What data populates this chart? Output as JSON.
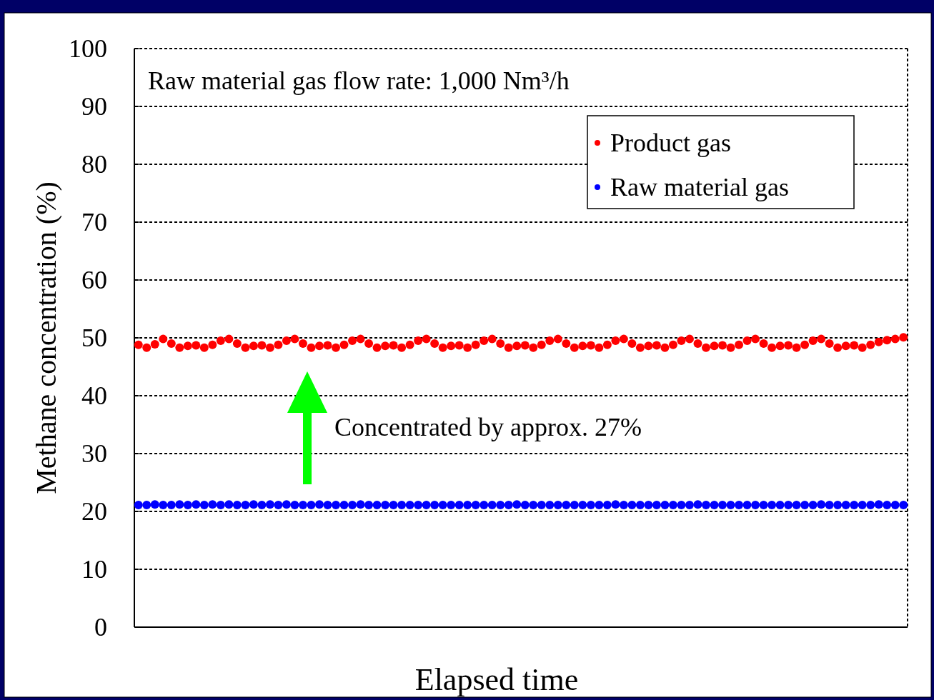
{
  "chart_data": {
    "type": "scatter",
    "xlabel": "Elapsed time",
    "ylabel": "Methane concentration (%)",
    "categories": [
      null,
      null,
      null,
      null,
      null,
      null,
      null,
      null,
      null,
      null,
      null,
      null,
      null,
      null,
      null,
      null,
      null,
      null,
      null,
      null,
      null,
      null,
      null,
      null,
      null,
      null,
      null,
      null,
      null,
      null,
      null,
      null,
      null,
      null,
      null,
      null,
      null,
      null,
      null,
      null,
      null,
      null,
      null,
      null,
      null,
      null,
      null,
      null,
      null,
      null,
      null,
      null,
      null,
      null,
      null,
      null,
      null,
      null,
      null,
      null,
      null,
      null,
      null,
      null,
      null,
      null,
      null,
      null,
      null,
      null,
      null,
      null,
      null,
      null,
      null,
      null,
      null,
      null,
      null,
      null,
      null,
      null,
      null,
      null,
      null,
      null,
      null,
      null,
      null,
      null,
      null,
      null,
      null,
      null
    ],
    "series": [
      {
        "name": "Product gas",
        "color": "#ff0000",
        "values": [
          48.8,
          48.3,
          48.9,
          49.8,
          49.0,
          48.3,
          48.6,
          48.7,
          48.3,
          48.8,
          49.5,
          49.8,
          49.0,
          48.3,
          48.6,
          48.7,
          48.3,
          48.8,
          49.5,
          49.8,
          49.0,
          48.3,
          48.6,
          48.7,
          48.3,
          48.8,
          49.5,
          49.8,
          49.0,
          48.3,
          48.6,
          48.7,
          48.3,
          48.8,
          49.5,
          49.8,
          49.0,
          48.3,
          48.6,
          48.7,
          48.3,
          48.8,
          49.5,
          49.8,
          49.0,
          48.3,
          48.6,
          48.7,
          48.3,
          48.8,
          49.5,
          49.8,
          49.0,
          48.3,
          48.6,
          48.7,
          48.3,
          48.8,
          49.5,
          49.8,
          49.0,
          48.3,
          48.6,
          48.7,
          48.3,
          48.8,
          49.5,
          49.8,
          49.0,
          48.3,
          48.6,
          48.7,
          48.3,
          48.8,
          49.5,
          49.8,
          49.0,
          48.3,
          48.6,
          48.7,
          48.3,
          48.8,
          49.5,
          49.8,
          49.0,
          48.3,
          48.6,
          48.7,
          48.3,
          48.8,
          49.3,
          49.6,
          49.8,
          50.1
        ]
      },
      {
        "name": "Raw material gas",
        "color": "#0000ff",
        "values": [
          21.1,
          21.1,
          21.2,
          21.1,
          21.1,
          21.2,
          21.1,
          21.2,
          21.1,
          21.2,
          21.1,
          21.2,
          21.1,
          21.1,
          21.2,
          21.1,
          21.2,
          21.1,
          21.2,
          21.1,
          21.1,
          21.1,
          21.2,
          21.1,
          21.1,
          21.1,
          21.1,
          21.2,
          21.1,
          21.1,
          21.1,
          21.1,
          21.1,
          21.1,
          21.1,
          21.1,
          21.1,
          21.1,
          21.1,
          21.1,
          21.1,
          21.1,
          21.1,
          21.1,
          21.1,
          21.1,
          21.2,
          21.1,
          21.1,
          21.1,
          21.1,
          21.1,
          21.1,
          21.1,
          21.1,
          21.1,
          21.1,
          21.1,
          21.2,
          21.1,
          21.1,
          21.1,
          21.1,
          21.1,
          21.1,
          21.1,
          21.1,
          21.1,
          21.2,
          21.1,
          21.1,
          21.1,
          21.1,
          21.1,
          21.1,
          21.1,
          21.1,
          21.1,
          21.1,
          21.1,
          21.1,
          21.1,
          21.1,
          21.2,
          21.1,
          21.1,
          21.1,
          21.1,
          21.1,
          21.1,
          21.2,
          21.1,
          21.1,
          21.1
        ]
      }
    ],
    "ylim": [
      0,
      100
    ],
    "yticks": [
      0,
      10,
      20,
      30,
      40,
      50,
      60,
      70,
      80,
      90,
      100
    ],
    "grid": "y",
    "legend": "top right",
    "marker": "circle",
    "annotations": [
      "Raw material gas flow rate: 1,000 Nm³/h",
      "Concentrated by approx. 27%"
    ]
  }
}
